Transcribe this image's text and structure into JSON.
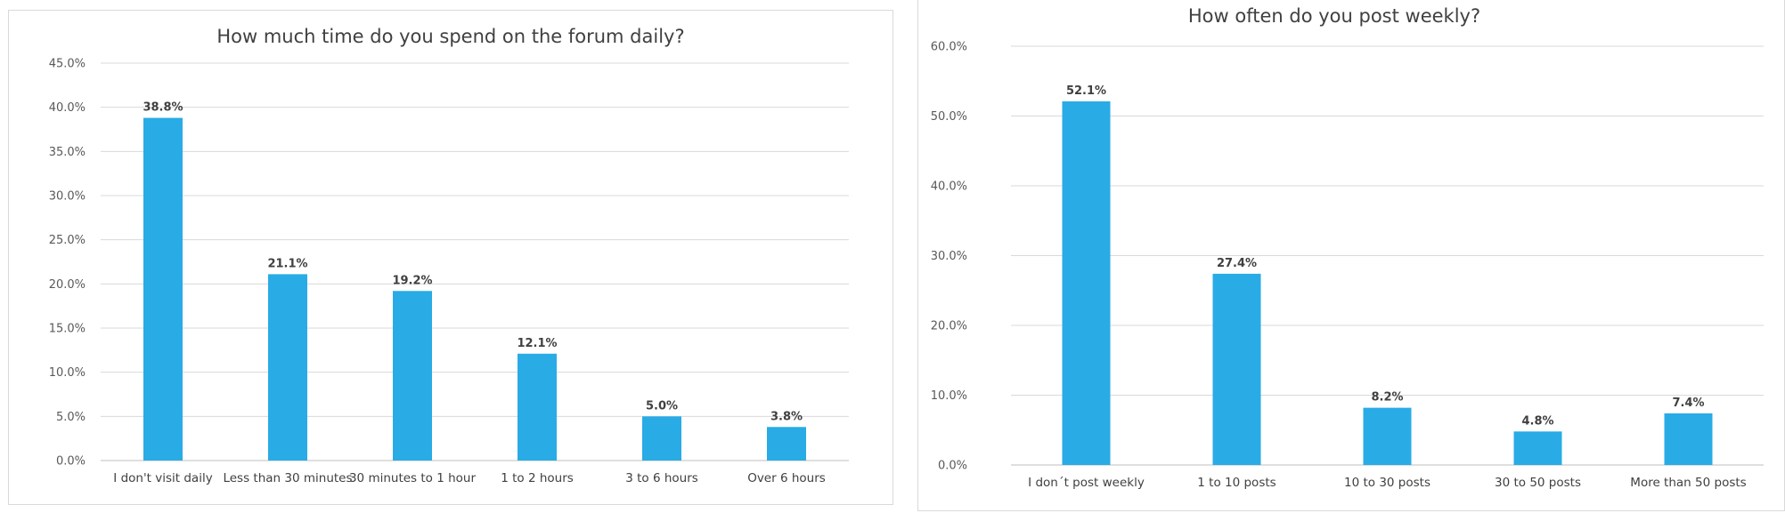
{
  "colors": {
    "bar": "#29abe6",
    "grid": "#d9d9d9",
    "text": "#404040"
  },
  "chart_data": [
    {
      "type": "bar",
      "title": "How much time do you spend on the forum daily?",
      "xlabel": "",
      "ylabel": "",
      "categories": [
        "I don't visit daily",
        "Less than 30 minutes",
        "30 minutes to 1 hour",
        "1 to 2 hours",
        "3 to 6 hours",
        "Over 6 hours"
      ],
      "values": [
        38.8,
        21.1,
        19.2,
        12.1,
        5.0,
        3.8
      ],
      "data_labels": [
        "38.8%",
        "21.1%",
        "19.2%",
        "12.1%",
        "5.0%",
        "3.8%"
      ],
      "ylim": [
        0,
        45
      ],
      "yticks": [
        0,
        5,
        10,
        15,
        20,
        25,
        30,
        35,
        40,
        45
      ],
      "ytick_labels": [
        "0.0%",
        "5.0%",
        "10.0%",
        "15.0%",
        "20.0%",
        "25.0%",
        "30.0%",
        "35.0%",
        "40.0%",
        "45.0%"
      ],
      "grid": true,
      "legend": "none"
    },
    {
      "type": "bar",
      "title": "How often do you post weekly?",
      "xlabel": "",
      "ylabel": "",
      "categories": [
        "I don´t post weekly",
        "1 to 10 posts",
        "10 to 30 posts",
        "30 to 50 posts",
        "More than 50 posts"
      ],
      "values": [
        52.1,
        27.4,
        8.2,
        4.8,
        7.4
      ],
      "data_labels": [
        "52.1%",
        "27.4%",
        "8.2%",
        "4.8%",
        "7.4%"
      ],
      "ylim": [
        0,
        60
      ],
      "yticks": [
        0,
        10,
        20,
        30,
        40,
        50,
        60
      ],
      "ytick_labels": [
        "0.0%",
        "10.0%",
        "20.0%",
        "30.0%",
        "40.0%",
        "50.0%",
        "60.0%"
      ],
      "grid": true,
      "legend": "none"
    }
  ]
}
